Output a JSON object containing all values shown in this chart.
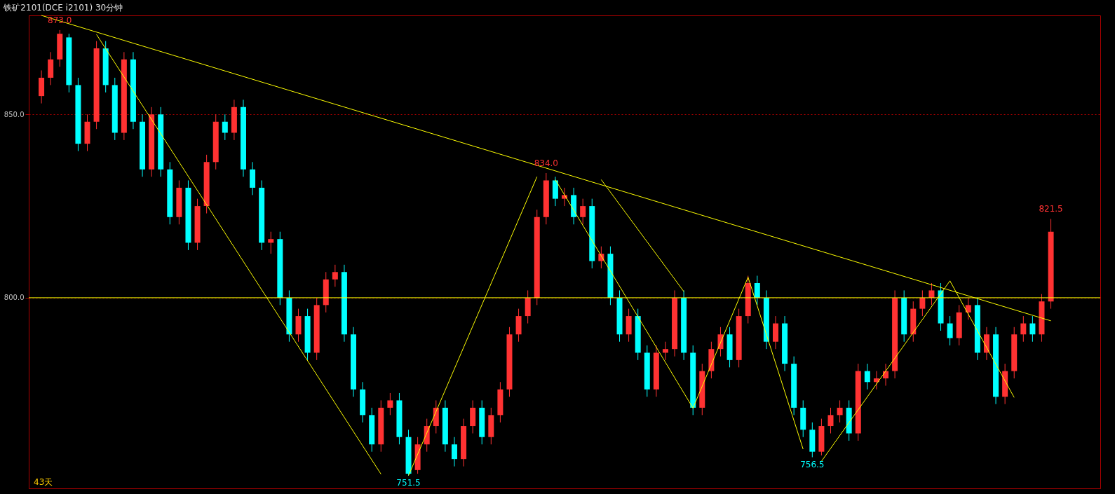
{
  "chart_data": {
    "type": "candlestick",
    "title": "铁矿2101(DCE i2101)  30分钟",
    "categories": [
      null,
      null,
      null,
      null,
      null,
      null,
      null,
      null,
      null,
      null,
      null,
      null,
      null,
      null,
      null,
      null,
      null,
      null,
      null,
      null,
      null,
      null,
      null,
      null,
      null,
      null,
      null,
      null,
      null,
      null,
      null,
      null,
      null,
      null,
      null,
      null,
      null,
      null,
      null,
      null,
      null,
      null,
      null,
      null,
      null,
      null,
      null,
      null,
      null,
      null,
      null,
      null,
      null,
      null,
      null,
      null,
      null,
      null,
      null,
      null,
      null,
      null,
      null,
      null,
      null,
      null,
      null,
      null,
      null,
      null,
      null,
      null,
      null,
      null,
      null,
      null,
      null,
      null,
      null,
      null,
      null,
      null,
      null,
      null,
      null,
      null,
      null,
      null,
      null,
      null,
      null,
      null,
      null,
      null,
      null,
      null,
      null,
      null,
      null,
      null,
      null,
      null,
      null,
      null,
      null,
      null,
      null,
      null,
      null,
      null,
      null
    ],
    "ohlc": [
      [
        855,
        862,
        853,
        860
      ],
      [
        860,
        867,
        858,
        865
      ],
      [
        865,
        873,
        863,
        872
      ],
      [
        871,
        872,
        856,
        858
      ],
      [
        858,
        860,
        840,
        842
      ],
      [
        842,
        850,
        840,
        848
      ],
      [
        848,
        870,
        846,
        868
      ],
      [
        868,
        870,
        856,
        858
      ],
      [
        858,
        860,
        843,
        845
      ],
      [
        845,
        867,
        843,
        865
      ],
      [
        865,
        867,
        846,
        848
      ],
      [
        848,
        850,
        833,
        835
      ],
      [
        835,
        852,
        833,
        850
      ],
      [
        850,
        852,
        833,
        835
      ],
      [
        835,
        837,
        820,
        822
      ],
      [
        822,
        832,
        820,
        830
      ],
      [
        830,
        832,
        813,
        815
      ],
      [
        815,
        827,
        813,
        825
      ],
      [
        825,
        839,
        823,
        837
      ],
      [
        837,
        850,
        835,
        848
      ],
      [
        848,
        850,
        843,
        845
      ],
      [
        845,
        854,
        843,
        852
      ],
      [
        852,
        854,
        833,
        835
      ],
      [
        835,
        837,
        828,
        830
      ],
      [
        830,
        832,
        813,
        815
      ],
      [
        815,
        818,
        812,
        816
      ],
      [
        816,
        818,
        798,
        800
      ],
      [
        800,
        802,
        788,
        790
      ],
      [
        790,
        797,
        788,
        795
      ],
      [
        795,
        797,
        783,
        785
      ],
      [
        785,
        800,
        783,
        798
      ],
      [
        798,
        807,
        796,
        805
      ],
      [
        805,
        809,
        803,
        807
      ],
      [
        807,
        809,
        788,
        790
      ],
      [
        790,
        792,
        773,
        775
      ],
      [
        775,
        777,
        766,
        768
      ],
      [
        768,
        770,
        758,
        760
      ],
      [
        760,
        772,
        758,
        770
      ],
      [
        770,
        774,
        768,
        772
      ],
      [
        772,
        774,
        760,
        762
      ],
      [
        762,
        764,
        751.5,
        752
      ],
      [
        753,
        762,
        752,
        760
      ],
      [
        760,
        767,
        758,
        765
      ],
      [
        765,
        772,
        763,
        770
      ],
      [
        770,
        772,
        758,
        760
      ],
      [
        760,
        762,
        754,
        756
      ],
      [
        756,
        767,
        754,
        765
      ],
      [
        765,
        772,
        763,
        770
      ],
      [
        770,
        772,
        760,
        762
      ],
      [
        762,
        770,
        760,
        768
      ],
      [
        768,
        777,
        766,
        775
      ],
      [
        775,
        792,
        773,
        790
      ],
      [
        790,
        797,
        788,
        795
      ],
      [
        795,
        802,
        793,
        800
      ],
      [
        800,
        824,
        798,
        822
      ],
      [
        822,
        834,
        820,
        832
      ],
      [
        832,
        833,
        825,
        827
      ],
      [
        827,
        830,
        825,
        828
      ],
      [
        828,
        830,
        820,
        822
      ],
      [
        822,
        827,
        820,
        825
      ],
      [
        825,
        827,
        808,
        810
      ],
      [
        810,
        814,
        808,
        812
      ],
      [
        812,
        814,
        798,
        800
      ],
      [
        800,
        802,
        788,
        790
      ],
      [
        790,
        797,
        788,
        795
      ],
      [
        795,
        797,
        783,
        785
      ],
      [
        785,
        787,
        773,
        775
      ],
      [
        775,
        787,
        773,
        785
      ],
      [
        785,
        788,
        783,
        786
      ],
      [
        786,
        802,
        784,
        800
      ],
      [
        800,
        802,
        783,
        785
      ],
      [
        785,
        787,
        768,
        770
      ],
      [
        770,
        782,
        768,
        780
      ],
      [
        780,
        788,
        778,
        786
      ],
      [
        786,
        792,
        784,
        790
      ],
      [
        790,
        792,
        781,
        783
      ],
      [
        783,
        797,
        781,
        795
      ],
      [
        795,
        806,
        793,
        804
      ],
      [
        804,
        806,
        798,
        800
      ],
      [
        800,
        802,
        786,
        788
      ],
      [
        788,
        795,
        786,
        793
      ],
      [
        793,
        795,
        780,
        782
      ],
      [
        782,
        784,
        768,
        770
      ],
      [
        770,
        772,
        762,
        764
      ],
      [
        764,
        766,
        756.5,
        758
      ],
      [
        758,
        767,
        757,
        765
      ],
      [
        765,
        770,
        763,
        768
      ],
      [
        768,
        772,
        766,
        770
      ],
      [
        770,
        772,
        761,
        763
      ],
      [
        763,
        782,
        761,
        780
      ],
      [
        780,
        782,
        775,
        777
      ],
      [
        777,
        780,
        775,
        778
      ],
      [
        778,
        782,
        776,
        780
      ],
      [
        780,
        802,
        778,
        800
      ],
      [
        800,
        802,
        788,
        790
      ],
      [
        790,
        799,
        788,
        797
      ],
      [
        797,
        802,
        795,
        800
      ],
      [
        800,
        804,
        798,
        802
      ],
      [
        802,
        804,
        791,
        793
      ],
      [
        793,
        795,
        787,
        789
      ],
      [
        789,
        798,
        787,
        796
      ],
      [
        796,
        800,
        794,
        798
      ],
      [
        798,
        800,
        783,
        785
      ],
      [
        785,
        792,
        783,
        790
      ],
      [
        790,
        792,
        771,
        773
      ],
      [
        773,
        782,
        771,
        780
      ],
      [
        780,
        792,
        778,
        790
      ],
      [
        790,
        795,
        788,
        793
      ],
      [
        793,
        795,
        788,
        790
      ],
      [
        790,
        801,
        788,
        799
      ],
      [
        799,
        821.5,
        797,
        818
      ]
    ],
    "colors": [
      "#ff3232",
      "#ff3232",
      "#ff3232",
      "#00ffff",
      "#00ffff",
      "#ff3232",
      "#ff3232",
      "#00ffff",
      "#00ffff",
      "#ff3232",
      "#00ffff",
      "#00ffff",
      "#ff3232",
      "#00ffff",
      "#00ffff",
      "#ff3232",
      "#00ffff",
      "#ff3232",
      "#ff3232",
      "#ff3232",
      "#00ffff",
      "#ff3232",
      "#00ffff",
      "#00ffff",
      "#00ffff",
      "#ff3232",
      "#00ffff",
      "#00ffff",
      "#ff3232",
      "#00ffff",
      "#ff3232",
      "#ff3232",
      "#ff3232",
      "#00ffff",
      "#00ffff",
      "#00ffff",
      "#00ffff",
      "#ff3232",
      "#ff3232",
      "#00ffff",
      "#00ffff",
      "#ff3232",
      "#ff3232",
      "#ff3232",
      "#00ffff",
      "#00ffff",
      "#ff3232",
      "#ff3232",
      "#00ffff",
      "#ff3232",
      "#ff3232",
      "#ff3232",
      "#ff3232",
      "#ff3232",
      "#ff3232",
      "#ff3232",
      "#00ffff",
      "#ff3232",
      "#00ffff",
      "#ff3232",
      "#00ffff",
      "#ff3232",
      "#00ffff",
      "#00ffff",
      "#ff3232",
      "#00ffff",
      "#00ffff",
      "#ff3232",
      "#ff3232",
      "#ff3232",
      "#00ffff",
      "#00ffff",
      "#ff3232",
      "#ff3232",
      "#ff3232",
      "#00ffff",
      "#ff3232",
      "#ff3232",
      "#00ffff",
      "#00ffff",
      "#ff3232",
      "#00ffff",
      "#00ffff",
      "#00ffff",
      "#00ffff",
      "#ff3232",
      "#ff3232",
      "#ff3232",
      "#00ffff",
      "#ff3232",
      "#00ffff",
      "#ff3232",
      "#ff3232",
      "#ff3232",
      "#00ffff",
      "#ff3232",
      "#ff3232",
      "#ff3232",
      "#00ffff",
      "#00ffff",
      "#ff3232",
      "#ff3232",
      "#00ffff",
      "#ff3232",
      "#00ffff",
      "#ff3232",
      "#ff3232",
      "#ff3232",
      "#00ffff",
      "#ff3232",
      "#ff3232"
    ],
    "ylim": [
      748,
      877
    ],
    "yticks": [
      {
        "value": 800,
        "label": "800.0"
      },
      {
        "value": 850,
        "label": "850.0"
      }
    ],
    "grid": "y",
    "series": [
      {
        "type": "line",
        "color": "#ffff00",
        "values": [
          877,
          null,
          null,
          null,
          null,
          null,
          null,
          null,
          null,
          null,
          null,
          null,
          null,
          null,
          null,
          null,
          null,
          null,
          null,
          null,
          null,
          null,
          null,
          null,
          null,
          null,
          null,
          null,
          null,
          null,
          null,
          null,
          null,
          null,
          null,
          null,
          null,
          null,
          null,
          null,
          null,
          null,
          null,
          null,
          null,
          null,
          null,
          null,
          null,
          null,
          null,
          null,
          null,
          null,
          null,
          null,
          null,
          null,
          null,
          null,
          null,
          null,
          null,
          null,
          null,
          null,
          null,
          null,
          null,
          null,
          null,
          null,
          null,
          null,
          null,
          null,
          null,
          null,
          null,
          null,
          null,
          null,
          null,
          null,
          null,
          null,
          null,
          null,
          null,
          null,
          null,
          null,
          null,
          null,
          null,
          null,
          null,
          null,
          null,
          null,
          null,
          null,
          null,
          null,
          null,
          null,
          null,
          null,
          null,
          null,
          793.7
        ]
      },
      {
        "type": "line",
        "color": "#ffff00",
        "values": [
          null,
          null,
          null,
          null,
          null,
          null,
          871.8,
          null,
          null,
          null,
          null,
          null,
          null,
          null,
          null,
          null,
          null,
          null,
          null,
          null,
          null,
          null,
          null,
          null,
          null,
          null,
          null,
          null,
          null,
          null,
          null,
          null,
          null,
          null,
          null,
          null,
          null,
          751.9,
          null,
          null,
          null,
          null,
          null,
          null,
          null,
          null,
          null,
          null,
          null,
          null,
          null,
          null,
          null,
          null,
          null,
          null,
          null,
          null,
          null,
          null,
          null,
          null,
          null,
          null,
          null,
          null,
          null,
          null,
          null,
          null,
          null,
          null,
          null,
          null,
          null,
          null,
          null,
          null,
          null,
          null,
          null,
          null,
          null,
          null,
          null,
          null,
          null,
          null,
          null,
          null,
          null,
          null,
          null,
          null,
          null,
          null,
          null,
          null,
          null,
          null,
          null,
          null,
          null,
          null,
          null,
          null,
          null,
          null,
          null,
          null,
          null
        ]
      },
      {
        "type": "line",
        "color": "#ffff00",
        "values": [
          null,
          null,
          null,
          null,
          null,
          null,
          null,
          null,
          null,
          null,
          null,
          null,
          null,
          null,
          null,
          null,
          null,
          null,
          null,
          null,
          null,
          null,
          null,
          null,
          null,
          null,
          null,
          null,
          null,
          null,
          null,
          null,
          null,
          null,
          null,
          null,
          null,
          null,
          null,
          null,
          751.5,
          null,
          null,
          null,
          null,
          null,
          null,
          null,
          null,
          null,
          null,
          null,
          null,
          null,
          833,
          null,
          null,
          null,
          null,
          null,
          null,
          null,
          null,
          null,
          null,
          null,
          null,
          null,
          null,
          null,
          null,
          null,
          null,
          null,
          null,
          null,
          null,
          null,
          null,
          null,
          null,
          null,
          null,
          null,
          null,
          null,
          null,
          null,
          null,
          null,
          null,
          null,
          null,
          null,
          null,
          null,
          null,
          null,
          null,
          null,
          null,
          null,
          null,
          null,
          null,
          null,
          null,
          null,
          null,
          null,
          null
        ]
      },
      {
        "type": "line",
        "color": "#ffff00",
        "values": [
          null,
          null,
          null,
          null,
          null,
          null,
          null,
          null,
          null,
          null,
          null,
          null,
          null,
          null,
          null,
          null,
          null,
          null,
          null,
          null,
          null,
          null,
          null,
          null,
          null,
          null,
          null,
          null,
          null,
          null,
          null,
          null,
          null,
          null,
          null,
          null,
          null,
          null,
          null,
          null,
          null,
          null,
          null,
          null,
          null,
          null,
          null,
          null,
          null,
          null,
          null,
          null,
          null,
          null,
          null,
          null,
          832.2,
          null,
          null,
          null,
          null,
          null,
          null,
          null,
          null,
          null,
          null,
          null,
          null,
          null,
          null,
          769.9,
          null,
          null,
          null,
          null,
          null,
          805.6,
          null,
          null,
          null,
          null,
          null,
          758.7,
          null,
          null,
          null,
          null,
          null,
          null,
          null,
          null,
          null,
          null,
          null,
          null,
          null,
          null,
          null,
          null,
          null,
          null,
          null,
          null,
          null,
          null,
          null,
          null,
          null,
          null,
          null
        ]
      },
      {
        "type": "line",
        "color": "#ffff00",
        "values": [
          null,
          null,
          null,
          null,
          null,
          null,
          null,
          null,
          null,
          null,
          null,
          null,
          null,
          null,
          null,
          null,
          null,
          null,
          null,
          null,
          null,
          null,
          null,
          null,
          null,
          null,
          null,
          null,
          null,
          null,
          null,
          null,
          null,
          null,
          null,
          null,
          null,
          null,
          null,
          null,
          null,
          null,
          null,
          null,
          null,
          null,
          null,
          null,
          null,
          null,
          null,
          null,
          null,
          null,
          null,
          null,
          null,
          null,
          null,
          null,
          null,
          832.2,
          null,
          null,
          null,
          null,
          null,
          null,
          null,
          null,
          801.7,
          null,
          null,
          null,
          null,
          null,
          null,
          null,
          null,
          null,
          null,
          null,
          null,
          null,
          null,
          null,
          null,
          null,
          null,
          null,
          null,
          null,
          null,
          null,
          null,
          null,
          null,
          null,
          null,
          null,
          null,
          null,
          null,
          null,
          null,
          null,
          null,
          null,
          null,
          null,
          null
        ]
      },
      {
        "type": "line",
        "color": "#ffff00",
        "values": [
          null,
          null,
          null,
          null,
          null,
          null,
          null,
          null,
          null,
          null,
          null,
          null,
          null,
          null,
          null,
          null,
          null,
          null,
          null,
          null,
          null,
          null,
          null,
          null,
          null,
          null,
          null,
          null,
          null,
          null,
          null,
          null,
          null,
          null,
          null,
          null,
          null,
          null,
          null,
          null,
          null,
          null,
          null,
          null,
          null,
          null,
          null,
          null,
          null,
          null,
          null,
          null,
          null,
          null,
          null,
          null,
          null,
          null,
          null,
          null,
          null,
          null,
          null,
          null,
          null,
          null,
          null,
          null,
          null,
          null,
          null,
          null,
          null,
          null,
          null,
          null,
          null,
          null,
          null,
          null,
          null,
          null,
          null,
          null,
          null,
          755.4,
          null,
          null,
          null,
          null,
          null,
          null,
          null,
          null,
          null,
          null,
          null,
          null,
          null,
          804.6,
          null,
          null,
          null,
          null,
          null,
          null,
          772.8,
          null,
          null,
          null,
          null
        ]
      }
    ],
    "ref_lines": [
      {
        "axis": "y",
        "value": 800,
        "color": "#ffff00"
      }
    ],
    "annotations": [
      {
        "text": "873.0",
        "y": 873
      },
      {
        "text": "834.0",
        "y": 834
      },
      {
        "text": "821.5",
        "y": 821.5
      },
      {
        "text": "751.5",
        "y": 751.5
      },
      {
        "text": "756.5",
        "y": 756.5
      },
      "43天"
    ]
  }
}
